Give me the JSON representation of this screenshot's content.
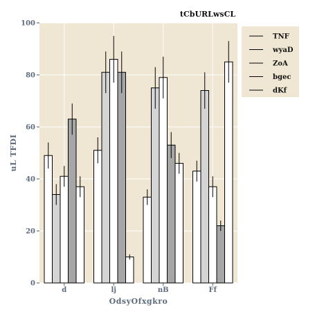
{
  "chart_data": {
    "type": "bar",
    "title": "tCbURLwsCL",
    "xlabel": "OdsyOfxgkro",
    "ylabel": "uL TFDI",
    "ylim": [
      0,
      100
    ],
    "yticks": [
      0,
      20,
      40,
      60,
      80,
      100
    ],
    "categories": [
      "d",
      "lj",
      "nB",
      "Ff"
    ],
    "grid": true,
    "legend_position": "top-right-outside",
    "series": [
      {
        "name": "TNF",
        "color": "#ffffff",
        "values": [
          49,
          51,
          33,
          43
        ],
        "errors": [
          5,
          5,
          3,
          4
        ]
      },
      {
        "name": "wyaD",
        "color": "#d4d4d4",
        "values": [
          34,
          81,
          75,
          74
        ],
        "errors": [
          4,
          8,
          8,
          7
        ]
      },
      {
        "name": "ZoA",
        "color": "#ffffff",
        "values": [
          41,
          86,
          79,
          37
        ],
        "errors": [
          4,
          9,
          8,
          4
        ]
      },
      {
        "name": "bgec",
        "color": "#a6a6a6",
        "values": [
          63,
          81,
          53,
          22
        ],
        "errors": [
          6,
          8,
          5,
          2
        ]
      },
      {
        "name": "dKf",
        "color": "#ffffff",
        "values": [
          37,
          10,
          46,
          85
        ],
        "errors": [
          4,
          1,
          4,
          8
        ]
      }
    ]
  }
}
